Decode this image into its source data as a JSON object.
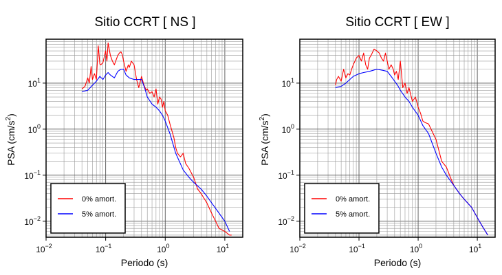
{
  "chart_data": [
    {
      "type": "line",
      "title": "Sitio CCRT [ NS ]",
      "xlabel": "Periodo (s)",
      "ylabel_main": "PSA (cm/s",
      "ylabel_sup": "2",
      "ylabel_tail": ")",
      "xscale": "log",
      "yscale": "log",
      "xlim": [
        0.01,
        20
      ],
      "ylim": [
        0.0045,
        90
      ],
      "grid": true,
      "legend_position": "bottom-left",
      "xticks": [
        {
          "value": 0.01,
          "base": "10",
          "exp": "−2"
        },
        {
          "value": 0.1,
          "base": "10",
          "exp": "−1"
        },
        {
          "value": 1,
          "base": "10",
          "exp": "0"
        },
        {
          "value": 10,
          "base": "10",
          "exp": "1"
        }
      ],
      "yticks": [
        {
          "value": 0.01,
          "base": "10",
          "exp": "−2"
        },
        {
          "value": 0.1,
          "base": "10",
          "exp": "−1"
        },
        {
          "value": 1,
          "base": "10",
          "exp": "0"
        },
        {
          "value": 10,
          "base": "10",
          "exp": "1"
        }
      ],
      "series": [
        {
          "name": "0% amort.",
          "color": "#ff0000",
          "x": [
            0.04,
            0.045,
            0.05,
            0.053,
            0.057,
            0.06,
            0.065,
            0.07,
            0.075,
            0.08,
            0.083,
            0.09,
            0.1,
            0.105,
            0.11,
            0.12,
            0.13,
            0.14,
            0.15,
            0.16,
            0.17,
            0.18,
            0.19,
            0.2,
            0.22,
            0.24,
            0.25,
            0.27,
            0.3,
            0.33,
            0.36,
            0.4,
            0.44,
            0.48,
            0.5,
            0.55,
            0.6,
            0.65,
            0.7,
            0.75,
            0.8,
            0.85,
            0.9,
            0.95,
            1.0,
            1.1,
            1.2,
            1.3,
            1.4,
            1.5,
            1.6,
            1.8,
            2.0,
            2.2,
            2.5,
            3.0,
            3.5,
            4.0,
            5.0,
            6.0,
            7.0,
            8.0,
            10.0,
            12.0,
            13.0
          ],
          "y": [
            7.5,
            8.5,
            13,
            10,
            23,
            12,
            16,
            12,
            65,
            26,
            25,
            28,
            50,
            30,
            75,
            40,
            30,
            25,
            32,
            40,
            45,
            48,
            42,
            30,
            18,
            25,
            22,
            30,
            25,
            12,
            8,
            14,
            9,
            7,
            7.5,
            6,
            6.5,
            5,
            7.5,
            3.5,
            5,
            4.5,
            3,
            4,
            2.5,
            2,
            1.3,
            0.9,
            0.65,
            0.4,
            0.3,
            0.25,
            0.3,
            0.18,
            0.14,
            0.09,
            0.05,
            0.04,
            0.025,
            0.015,
            0.01,
            0.007,
            0.006,
            0.005,
            0.005
          ]
        },
        {
          "name": "5% amort.",
          "color": "#0000ff",
          "x": [
            0.04,
            0.05,
            0.06,
            0.07,
            0.08,
            0.09,
            0.1,
            0.11,
            0.12,
            0.14,
            0.16,
            0.18,
            0.2,
            0.22,
            0.25,
            0.3,
            0.35,
            0.4,
            0.45,
            0.5,
            0.6,
            0.7,
            0.8,
            0.9,
            1.0,
            1.2,
            1.5,
            2.0,
            2.5,
            3.0,
            4.0,
            5.0,
            6.0,
            8.0,
            10.0,
            12.0
          ],
          "y": [
            6.5,
            7,
            9,
            11,
            14,
            12,
            15,
            17,
            15,
            13,
            18,
            20,
            20,
            15,
            13,
            12,
            12,
            12,
            8,
            5,
            3.5,
            3,
            2.5,
            2,
            1.5,
            0.8,
            0.3,
            0.13,
            0.09,
            0.07,
            0.05,
            0.035,
            0.025,
            0.015,
            0.01,
            0.006
          ]
        }
      ]
    },
    {
      "type": "line",
      "title": "Sitio CCRT [ EW ]",
      "xlabel": "Periodo (s)",
      "ylabel_main": "PSA (cm/s",
      "ylabel_sup": "2",
      "ylabel_tail": ")",
      "xscale": "log",
      "yscale": "log",
      "xlim": [
        0.01,
        20
      ],
      "ylim": [
        0.0045,
        90
      ],
      "grid": true,
      "legend_position": "bottom-left",
      "xticks": [
        {
          "value": 0.01,
          "base": "10",
          "exp": "−2"
        },
        {
          "value": 0.1,
          "base": "10",
          "exp": "−1"
        },
        {
          "value": 1,
          "base": "10",
          "exp": "0"
        },
        {
          "value": 10,
          "base": "10",
          "exp": "1"
        }
      ],
      "yticks": [
        {
          "value": 0.01,
          "base": "10",
          "exp": "−2"
        },
        {
          "value": 0.1,
          "base": "10",
          "exp": "−1"
        },
        {
          "value": 1,
          "base": "10",
          "exp": "0"
        },
        {
          "value": 10,
          "base": "10",
          "exp": "1"
        }
      ],
      "series": [
        {
          "name": "0% amort.",
          "color": "#ff0000",
          "x": [
            0.04,
            0.042,
            0.045,
            0.05,
            0.055,
            0.06,
            0.065,
            0.07,
            0.075,
            0.08,
            0.09,
            0.1,
            0.11,
            0.12,
            0.13,
            0.14,
            0.15,
            0.16,
            0.18,
            0.2,
            0.22,
            0.24,
            0.26,
            0.28,
            0.3,
            0.32,
            0.35,
            0.38,
            0.4,
            0.43,
            0.46,
            0.5,
            0.55,
            0.6,
            0.65,
            0.7,
            0.8,
            0.9,
            1.0,
            1.1,
            1.2,
            1.3,
            1.5,
            2.0,
            2.5,
            3.0,
            3.5,
            4.0,
            5.0,
            6.0,
            8.0,
            10.0,
            12.0,
            15.0
          ],
          "y": [
            9,
            12,
            14,
            11,
            20,
            13,
            16,
            15,
            20,
            25,
            35,
            40,
            30,
            45,
            25,
            20,
            35,
            40,
            55,
            50,
            45,
            35,
            30,
            45,
            30,
            20,
            25,
            20,
            15,
            18,
            12,
            30,
            8,
            10,
            6,
            8,
            4,
            5,
            3,
            2.2,
            1.5,
            1.4,
            1.3,
            0.6,
            0.2,
            0.15,
            0.09,
            0.06,
            0.04,
            0.03,
            0.02,
            0.012,
            0.008,
            0.005
          ]
        },
        {
          "name": "5% amort.",
          "color": "#0000ff",
          "x": [
            0.04,
            0.05,
            0.06,
            0.07,
            0.08,
            0.1,
            0.12,
            0.15,
            0.2,
            0.25,
            0.3,
            0.35,
            0.4,
            0.45,
            0.5,
            0.6,
            0.7,
            0.8,
            1.0,
            1.2,
            1.5,
            2.0,
            2.5,
            3.0,
            4.0,
            5.0,
            6.0,
            8.0,
            10.0,
            12.0,
            15.0
          ],
          "y": [
            8,
            8.5,
            10,
            12,
            14,
            16,
            17,
            18,
            20,
            19,
            18,
            14,
            11,
            9,
            7,
            5,
            4,
            3,
            2,
            1.2,
            0.8,
            0.3,
            0.15,
            0.1,
            0.06,
            0.04,
            0.03,
            0.02,
            0.012,
            0.008,
            0.005
          ]
        }
      ]
    }
  ]
}
